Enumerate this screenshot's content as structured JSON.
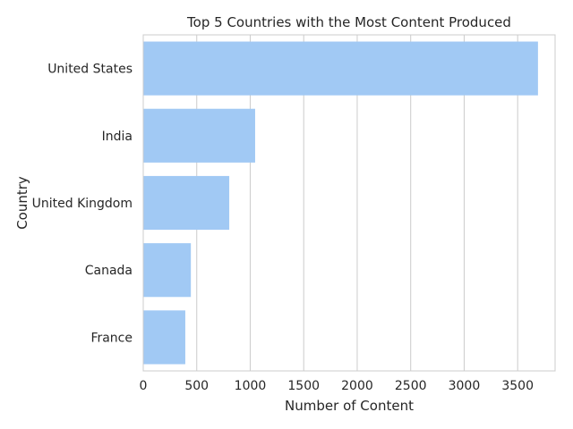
{
  "chart_data": {
    "type": "bar",
    "orientation": "horizontal",
    "title": "Top 5 Countries with the Most Content Produced",
    "xlabel": "Number of Content",
    "ylabel": "Country",
    "categories": [
      "United States",
      "India",
      "United Kingdom",
      "Canada",
      "France"
    ],
    "values": [
      3690,
      1046,
      804,
      445,
      393
    ],
    "xlim": [
      0,
      3850
    ],
    "xticks": [
      0,
      500,
      1000,
      1500,
      2000,
      2500,
      3000,
      3500
    ],
    "grid": "vertical",
    "bar_color": "#a1c9f4"
  }
}
